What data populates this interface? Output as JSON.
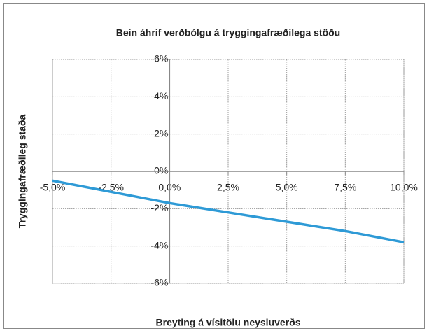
{
  "chart_data": {
    "type": "line",
    "title": "Bein áhrif verðbólgu á tryggingafræðilega stöðu",
    "x_label": "Breyting á vísitölu neysluverðs",
    "y_label": "Tryggingafræðileg staða",
    "x": [
      -5,
      -2.5,
      0,
      2.5,
      5,
      7.5,
      10
    ],
    "series": [
      {
        "name": "Tryggingafræðileg staða",
        "color": "#2e9ad6",
        "values": [
          -0.5,
          -1.1,
          -1.7,
          -2.2,
          -2.7,
          -3.2,
          -3.8
        ]
      }
    ],
    "xlim": [
      -5,
      10
    ],
    "xticks": [
      {
        "value": -5,
        "label": "-5,0%"
      },
      {
        "value": -2.5,
        "label": "-2,5%"
      },
      {
        "value": 0,
        "label": "0,0%"
      },
      {
        "value": 2.5,
        "label": "2,5%"
      },
      {
        "value": 5,
        "label": "5,0%"
      },
      {
        "value": 7.5,
        "label": "7,5%"
      },
      {
        "value": 10,
        "label": "10,0%"
      }
    ],
    "ylim": [
      -6,
      6
    ],
    "yticks": [
      {
        "value": -6,
        "label": "-6%"
      },
      {
        "value": -4,
        "label": "-4%"
      },
      {
        "value": -2,
        "label": "-2%"
      },
      {
        "value": 0,
        "label": "0%"
      },
      {
        "value": 2,
        "label": "2%"
      },
      {
        "value": 4,
        "label": "4%"
      },
      {
        "value": 6,
        "label": "6%"
      }
    ],
    "grid": true
  }
}
